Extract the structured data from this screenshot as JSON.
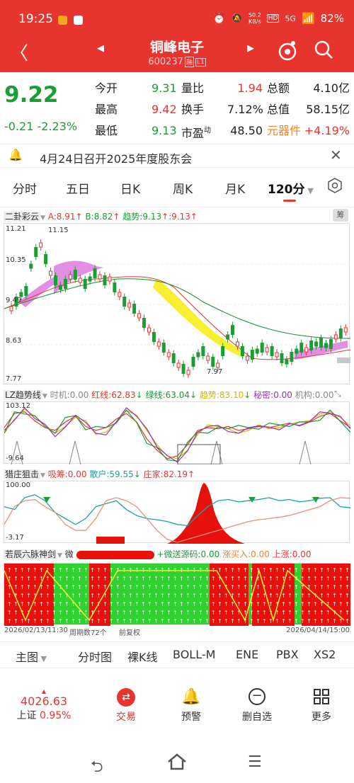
{
  "status_bar": {
    "time": "19:25",
    "net_speed_top": "50.2",
    "net_speed_bottom": "KB/s",
    "hd": "HD",
    "signal": "5G",
    "battery": "82%"
  },
  "header": {
    "title": "铜峰电子",
    "code": "600237",
    "tag1": "融",
    "tag2": "L1"
  },
  "quote": {
    "price": "9.22",
    "change": "-0.21",
    "change_pct": "-2.23%",
    "open_label": "今开",
    "open": "9.31",
    "high_label": "最高",
    "high": "9.42",
    "low_label": "最低",
    "low": "9.13",
    "vol_ratio_label": "量比",
    "vol_ratio": "1.94",
    "turnover_label": "换手",
    "turnover": "7.12%",
    "pe_label": "市盈",
    "pe_sup": "动",
    "pe": "48.50",
    "amount_label": "总额",
    "amount": "4.10亿",
    "mcap_label": "总值",
    "mcap": "58.15亿",
    "sector": "元器件",
    "sector_pct": "+4.19%"
  },
  "notice": {
    "text": "4月24日召开2025年度股东会"
  },
  "tabs": [
    "分时",
    "五日",
    "日K",
    "周K",
    "月K",
    "120分"
  ],
  "kchart": {
    "name": "二卦彩云",
    "a": "A:8.91",
    "b": "B:8.82",
    "trend": "趋势:9.13",
    "trend2": ":9.13",
    "side_btn": "筹",
    "y_labels": [
      "11.21",
      "10.35",
      "9.49",
      "8.63",
      "7.77"
    ],
    "hi_label": "11.15",
    "lo_label": "7.97"
  },
  "lz": {
    "name": "LZ趋势线",
    "shiji": "时机:0.00",
    "hong": "红线:62.83",
    "lv": "绿线:63.04",
    "qs": "趋势:83.10",
    "mm": "秘密:0.00",
    "jg": "机构:0.00",
    "ytop": "103.12",
    "ybot": "-9.64"
  },
  "lz_chart": {
    "type": "line",
    "title": "",
    "series": [
      {
        "values": [
          60,
          85,
          88,
          72,
          60,
          55,
          70,
          80,
          62,
          55,
          60,
          75,
          85,
          70,
          40,
          20,
          5,
          10,
          30,
          55,
          60,
          58,
          62,
          55,
          58,
          62,
          60,
          64,
          68,
          63,
          70,
          80,
          85,
          72,
          60
        ]
      }
    ]
  },
  "lz_chart2": {
    "type": "line",
    "title": "",
    "series": [
      {
        "values": [
          50,
          75,
          92,
          80,
          65,
          50,
          62,
          78,
          72,
          48,
          52,
          70,
          90,
          82,
          55,
          30,
          10,
          5,
          20,
          48,
          65,
          62,
          58,
          50,
          55,
          65,
          58,
          60,
          66,
          70,
          72,
          84,
          88,
          78,
          63
        ]
      }
    ]
  },
  "zr": {
    "name": "猎庄狙击",
    "xc": "吸筹:0.00",
    "sh": "散户:59.55",
    "zj": "庄家:82.19",
    "ytop": "100.00",
    "ybot": "-3.17"
  },
  "zr_chart": {
    "type": "line",
    "title": "",
    "series": [
      {
        "values": [
          60,
          55,
          75,
          80,
          70,
          50,
          40,
          30,
          40,
          60,
          65,
          70,
          55,
          45,
          40,
          38,
          35,
          30,
          28,
          45,
          60,
          70,
          72,
          68,
          70,
          72,
          75,
          70,
          72,
          68,
          70,
          74,
          75,
          60,
          58
        ]
      },
      {
        "values": [
          30,
          60,
          70,
          72,
          60,
          50,
          30,
          20,
          20,
          40,
          70,
          75,
          70,
          60,
          40,
          20,
          5,
          0,
          5,
          10,
          15,
          20,
          25,
          30,
          35,
          38,
          40,
          42,
          45,
          50,
          55,
          60,
          70,
          75,
          74
        ]
      }
    ]
  },
  "rc": {
    "name": "若辰六脉神剑",
    "w": "微",
    "ws": "+微送源码:0.00",
    "zm": "涨买入:0.00",
    "sz": "上涨:0.00"
  },
  "footer_chart": {
    "start": "2026/02/13/11:30",
    "cycles": "周期数72个",
    "fq": "前复权",
    "end": "2026/04/14/15:00"
  },
  "main_tabs": {
    "main": "主图",
    "items": [
      "分时图",
      "裸K线",
      "BOLL-M",
      "ENE",
      "PBX",
      "XS2"
    ]
  },
  "bottom": {
    "index_val": "4026.63",
    "index_name": "上证",
    "index_pct": "0.95%",
    "trade": "交易",
    "alert": "预警",
    "del": "删自选",
    "more": "更多"
  }
}
